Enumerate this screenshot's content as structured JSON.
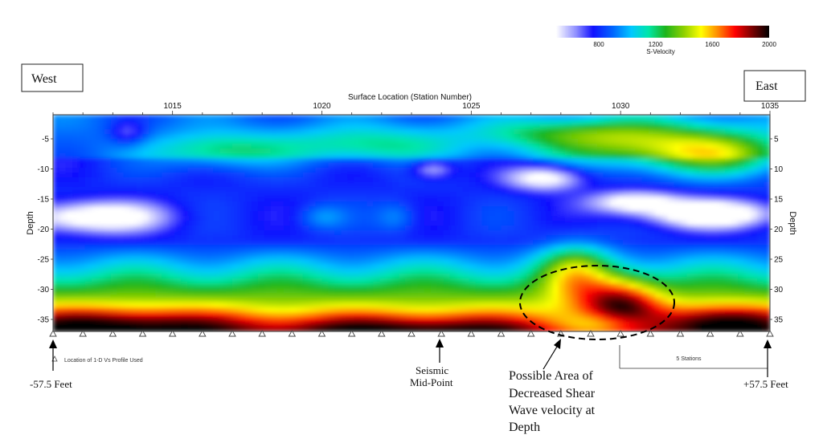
{
  "chart_data": {
    "type": "heatmap",
    "title": "",
    "xlabel": "Surface Location (Station Number)",
    "ylabel": "Depth",
    "y2label": "Depth",
    "xlim": [
      1011,
      1035
    ],
    "ylim": [
      -37,
      -1
    ],
    "x_ticks": [
      1015,
      1020,
      1025,
      1030,
      1035
    ],
    "y_ticks": [
      -5,
      -10,
      -15,
      -20,
      -25,
      -30,
      -35
    ],
    "y_ticks_right": [
      "5",
      "10",
      "15",
      "20",
      "25",
      "30",
      "35"
    ],
    "grid": false,
    "colorbar": {
      "label": "S-Velocity",
      "min": 500,
      "max": 2000,
      "ticks": [
        800,
        1200,
        1600,
        2000
      ],
      "stops": [
        {
          "v": 500,
          "c": "#ffffff"
        },
        {
          "v": 640,
          "c": "#8f8fff"
        },
        {
          "v": 760,
          "c": "#1111ff"
        },
        {
          "v": 900,
          "c": "#0066ff"
        },
        {
          "v": 1030,
          "c": "#00c8ff"
        },
        {
          "v": 1150,
          "c": "#00e6a8"
        },
        {
          "v": 1270,
          "c": "#1cb41c"
        },
        {
          "v": 1400,
          "c": "#8ed000"
        },
        {
          "v": 1520,
          "c": "#ffff00"
        },
        {
          "v": 1640,
          "c": "#ff8800"
        },
        {
          "v": 1760,
          "c": "#ff0000"
        },
        {
          "v": 1880,
          "c": "#7a0000"
        },
        {
          "v": 2000,
          "c": "#000000"
        }
      ]
    },
    "profile_stations": [
      1011,
      1012,
      1013,
      1014,
      1015,
      1016,
      1017,
      1018,
      1019,
      1020,
      1021,
      1022,
      1023,
      1024,
      1025,
      1026,
      1027,
      1028,
      1029,
      1030,
      1031,
      1032,
      1033,
      1034,
      1035
    ],
    "legend": [
      {
        "symbol": "triangle-outline",
        "label": "Location of 1-D Vs Profile Used"
      }
    ],
    "scale_bar_label": "5 Stations",
    "direction_labels": {
      "west": "West",
      "east": "East"
    },
    "annotations": {
      "left_end": "-57.5 Feet",
      "right_end": "+57.5 Feet",
      "midpoint": [
        "Seismic",
        "Mid-Point"
      ],
      "anomaly": [
        "Possible Area of",
        "Decreased Shear",
        "Wave velocity at",
        "Depth"
      ]
    }
  }
}
